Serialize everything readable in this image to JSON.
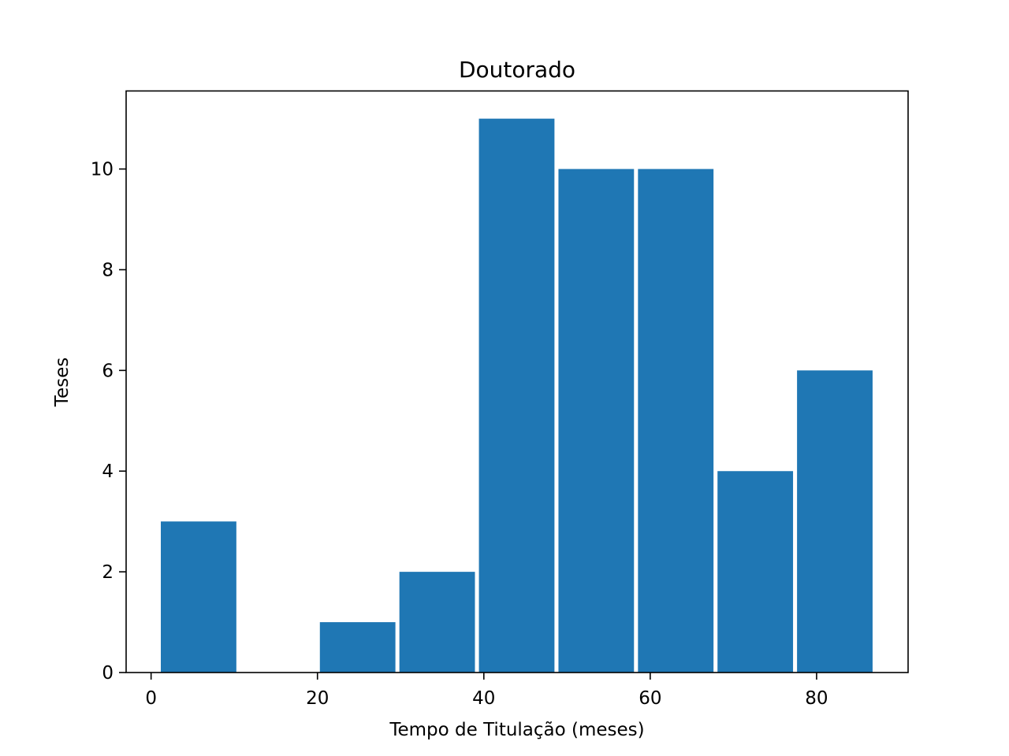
{
  "chart_data": {
    "type": "bar",
    "title": "Doutorado",
    "xlabel": "Tempo de Titulação (meses)",
    "ylabel": "Teses",
    "xlim": [
      -3,
      91
    ],
    "ylim": [
      0,
      11.55
    ],
    "xticks": [
      0,
      20,
      40,
      60,
      80
    ],
    "yticks": [
      0,
      2,
      4,
      6,
      8,
      10
    ],
    "bar_color": "#1f77b4",
    "grid": false,
    "bins": [
      {
        "x0": 1.17,
        "x1": 10.25,
        "value": 3
      },
      {
        "x0": 10.73,
        "x1": 19.81,
        "value": 0
      },
      {
        "x0": 20.29,
        "x1": 29.37,
        "value": 1
      },
      {
        "x0": 29.85,
        "x1": 38.93,
        "value": 2
      },
      {
        "x0": 39.41,
        "x1": 48.49,
        "value": 11
      },
      {
        "x0": 48.97,
        "x1": 58.05,
        "value": 10
      },
      {
        "x0": 58.53,
        "x1": 67.61,
        "value": 10
      },
      {
        "x0": 68.09,
        "x1": 77.17,
        "value": 4
      },
      {
        "x0": 77.65,
        "x1": 86.73,
        "value": 6
      }
    ]
  }
}
